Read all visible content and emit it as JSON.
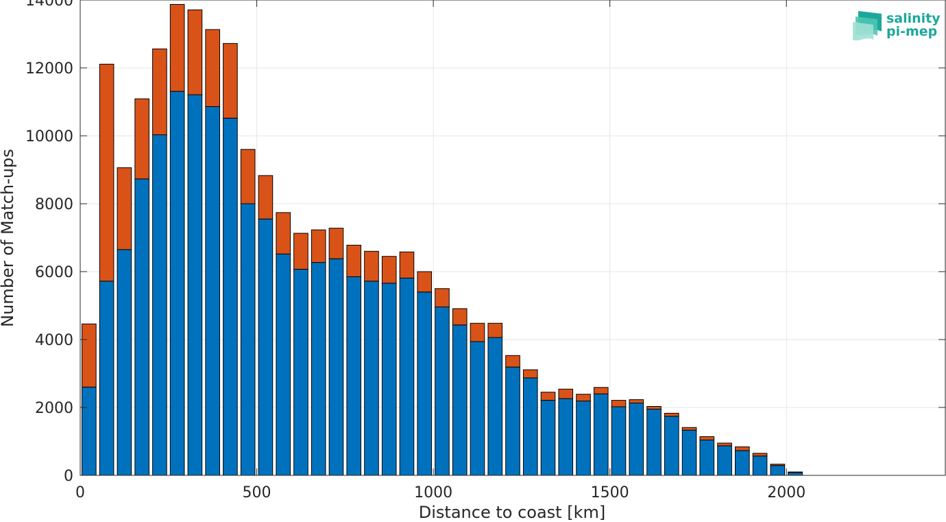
{
  "chart_data": {
    "type": "bar",
    "stacked": true,
    "xlabel": "Distance to coast [km]",
    "ylabel": "Number of Match-ups",
    "xlim": [
      0,
      2450
    ],
    "ylim": [
      0,
      14000
    ],
    "xticks": [
      0,
      500,
      1000,
      1500,
      2000
    ],
    "yticks": [
      0,
      2000,
      4000,
      6000,
      8000,
      10000,
      12000,
      14000
    ],
    "grid": true,
    "bin_width": 50,
    "x": [
      25,
      75,
      125,
      175,
      225,
      275,
      325,
      375,
      425,
      475,
      525,
      575,
      625,
      675,
      725,
      775,
      825,
      875,
      925,
      975,
      1025,
      1075,
      1125,
      1175,
      1225,
      1275,
      1325,
      1375,
      1425,
      1475,
      1525,
      1575,
      1625,
      1675,
      1725,
      1775,
      1825,
      1875,
      1925,
      1975,
      2025,
      2075,
      2125,
      2175,
      2225,
      2275,
      2325,
      2375,
      2425
    ],
    "series": [
      {
        "color": "#0072BD",
        "values": [
          2600,
          5720,
          6650,
          8730,
          10030,
          11310,
          11210,
          10860,
          10520,
          8000,
          7550,
          6520,
          6070,
          6270,
          6380,
          5850,
          5720,
          5660,
          5810,
          5400,
          4960,
          4430,
          3940,
          4060,
          3190,
          2870,
          2210,
          2260,
          2190,
          2400,
          2020,
          2130,
          1950,
          1740,
          1330,
          1040,
          870,
          730,
          570,
          290,
          80,
          0,
          0,
          0,
          0,
          0,
          0,
          0,
          0
        ]
      },
      {
        "color": "#D95319",
        "values": [
          1860,
          6390,
          2410,
          2360,
          2530,
          2560,
          2500,
          2270,
          2200,
          1600,
          1280,
          1220,
          1060,
          960,
          900,
          930,
          880,
          790,
          770,
          600,
          540,
          480,
          540,
          420,
          340,
          240,
          240,
          280,
          200,
          190,
          190,
          100,
          80,
          90,
          80,
          100,
          80,
          110,
          80,
          40,
          20,
          0,
          0,
          0,
          0,
          0,
          0,
          0,
          0
        ]
      }
    ]
  },
  "logo": {
    "line1": "salinity",
    "line2": "pi-mep"
  },
  "colors": {
    "axis": "#262626",
    "grid": "#e6e6e6",
    "logo": "#1ba89a"
  }
}
